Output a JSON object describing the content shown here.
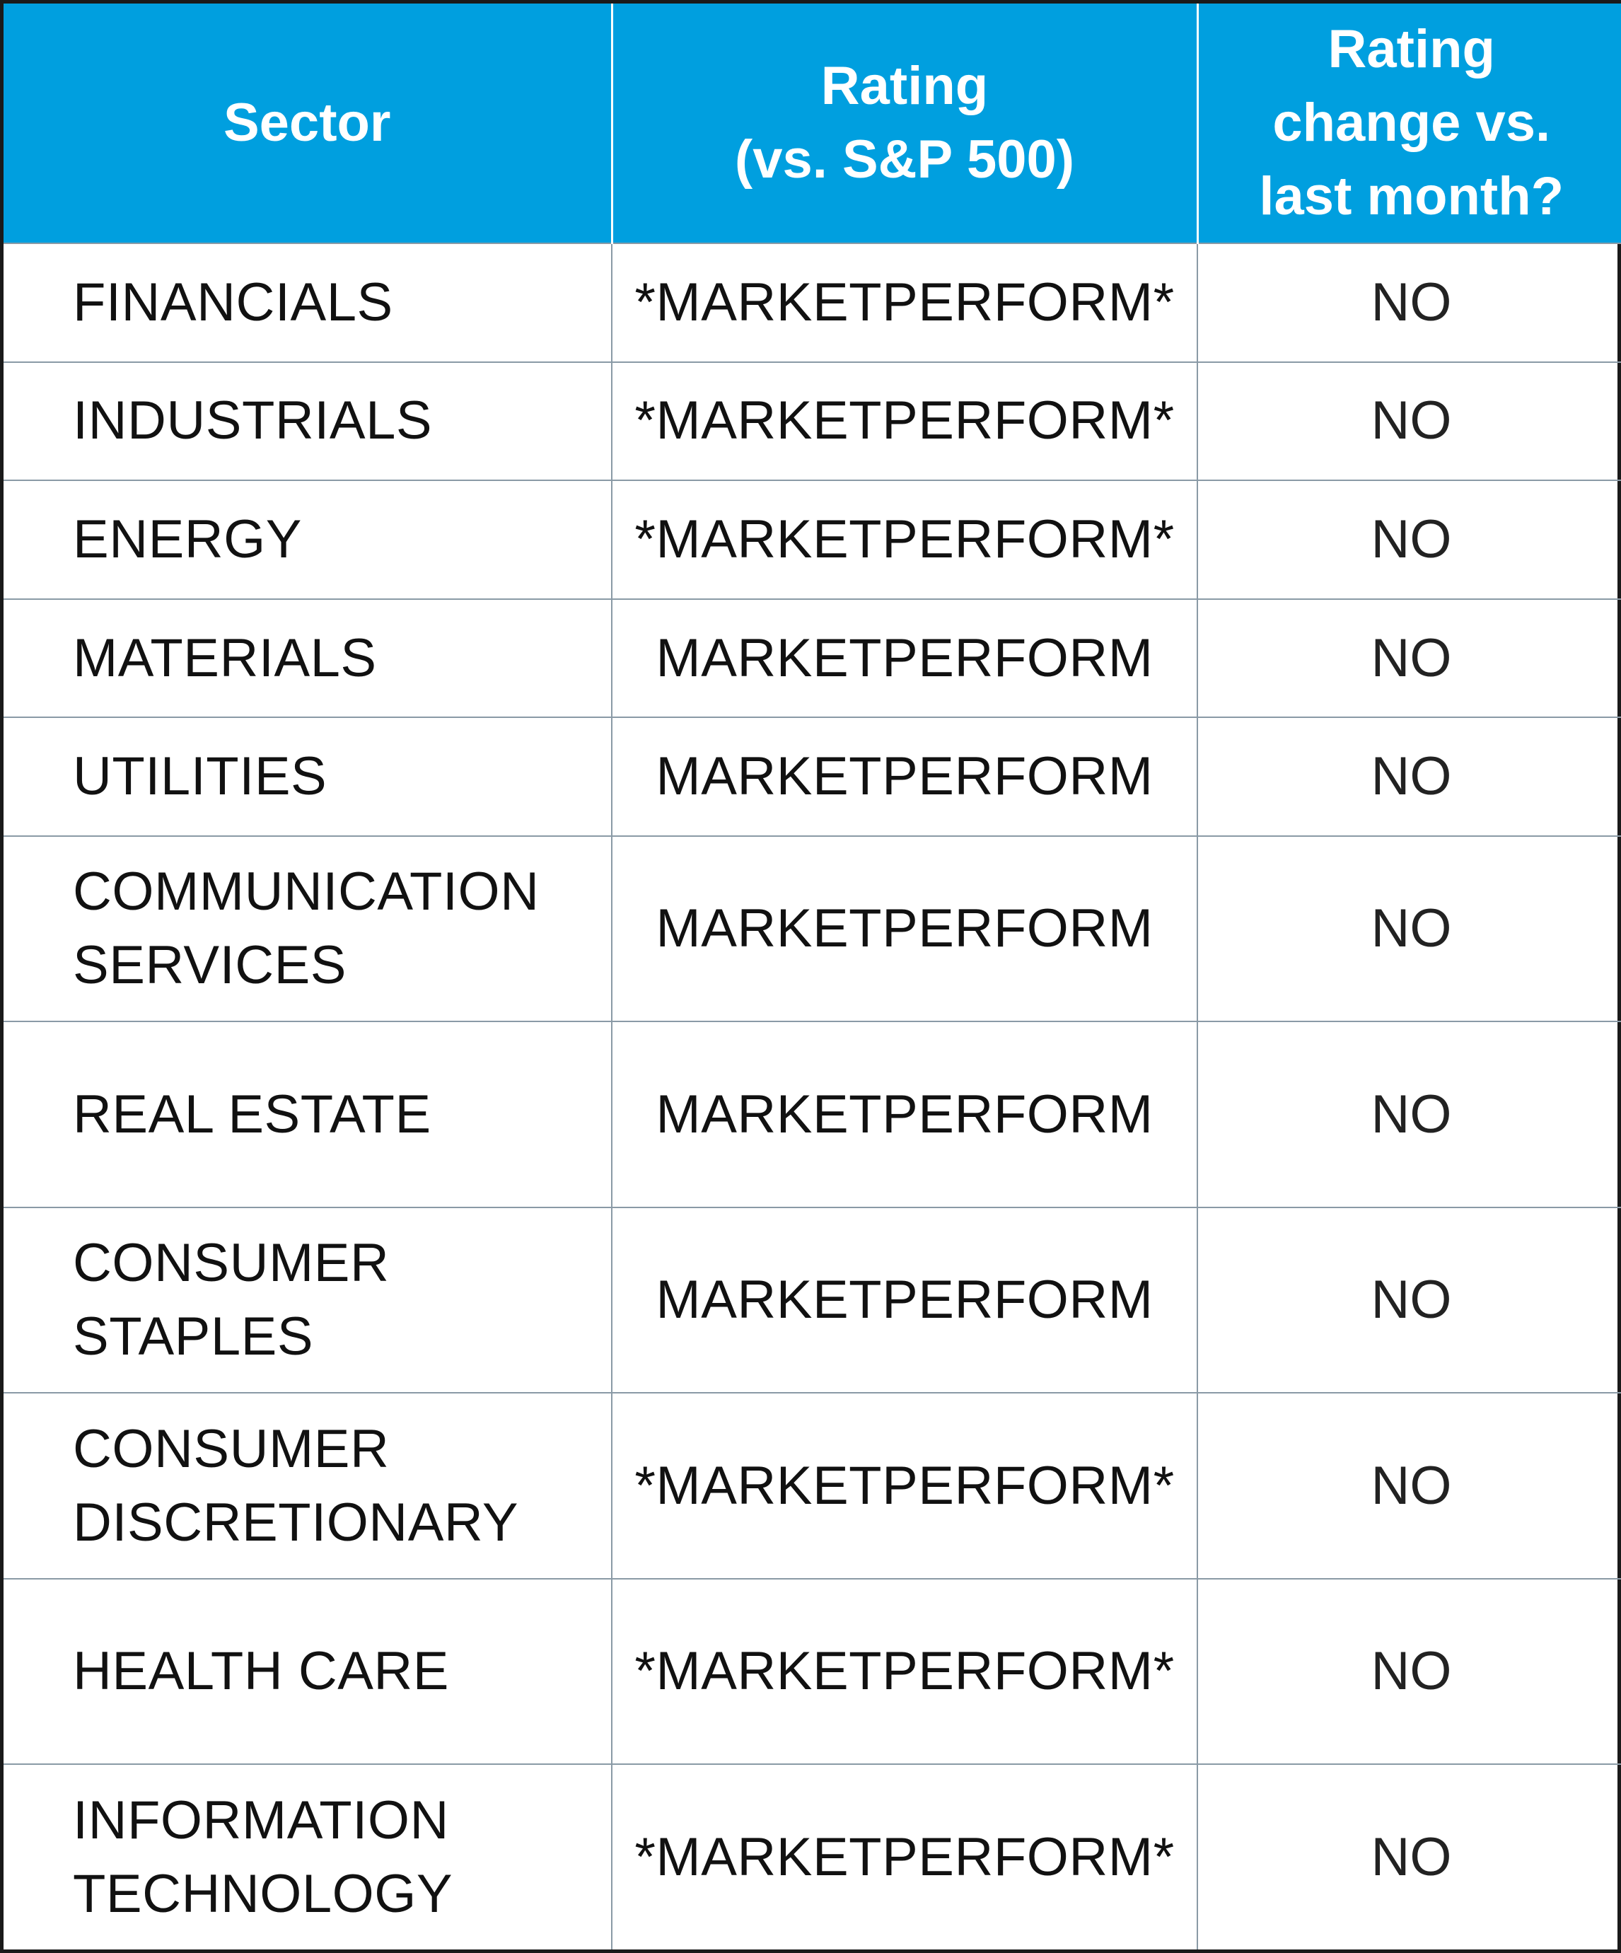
{
  "table": {
    "headers": {
      "sector": "Sector",
      "rating_line1": "Rating",
      "rating_line2": "(vs. S&P 500)",
      "change_line1": "Rating",
      "change_line2": "change vs.",
      "change_line3": "last month?"
    },
    "rows": [
      {
        "sector_line1": "FINANCIALS",
        "sector_line2": "",
        "rating": "*MARKETPERFORM*",
        "change": "NO"
      },
      {
        "sector_line1": "INDUSTRIALS",
        "sector_line2": "",
        "rating": "*MARKETPERFORM*",
        "change": "NO"
      },
      {
        "sector_line1": "ENERGY",
        "sector_line2": "",
        "rating": "*MARKETPERFORM*",
        "change": "NO"
      },
      {
        "sector_line1": "MATERIALS",
        "sector_line2": "",
        "rating": "MARKETPERFORM",
        "change": "NO"
      },
      {
        "sector_line1": "UTILITIES",
        "sector_line2": "",
        "rating": "MARKETPERFORM",
        "change": "NO"
      },
      {
        "sector_line1": "COMMUNICATION",
        "sector_line2": "SERVICES",
        "rating": "MARKETPERFORM",
        "change": "NO"
      },
      {
        "sector_line1": "REAL ESTATE",
        "sector_line2": "",
        "rating": "MARKETPERFORM",
        "change": "NO"
      },
      {
        "sector_line1": "CONSUMER",
        "sector_line2": "STAPLES",
        "rating": "MARKETPERFORM",
        "change": "NO"
      },
      {
        "sector_line1": "CONSUMER",
        "sector_line2": "DISCRETIONARY",
        "rating": "*MARKETPERFORM*",
        "change": "NO"
      },
      {
        "sector_line1": "HEALTH CARE",
        "sector_line2": "",
        "rating": "*MARKETPERFORM*",
        "change": "NO"
      },
      {
        "sector_line1": "INFORMATION",
        "sector_line2": "TECHNOLOGY",
        "rating": "*MARKETPERFORM*",
        "change": "NO"
      }
    ]
  },
  "colors": {
    "header_background": "#009fdf",
    "header_text": "#ffffff",
    "body_text": "#111111",
    "grid": "#8a9aa6",
    "outer_border": "#1a1a1a"
  }
}
